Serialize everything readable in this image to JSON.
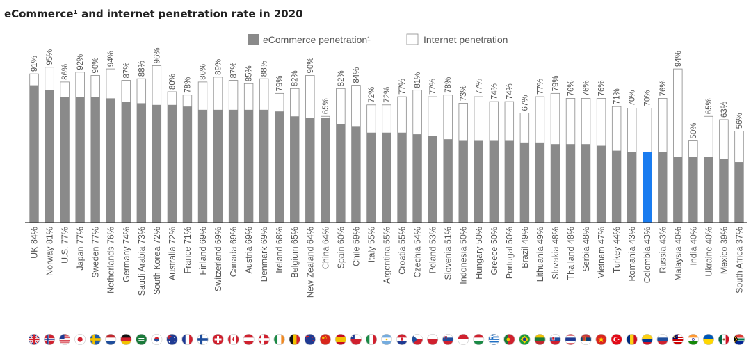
{
  "chart_data": {
    "type": "bar",
    "title": "eCommerce¹ and internet penetration rate in 2020",
    "legend": {
      "placement": "top-center",
      "entries": [
        "eCommerce penetration¹",
        "Internet penetration"
      ]
    },
    "ylim": [
      0,
      100
    ],
    "grid": false,
    "highlight": "Colombia",
    "colors": {
      "ecommerce": "#8a8a8a",
      "internet": "#ffffff",
      "highlight": "#1a7cf0",
      "outline": "#8a8a8a",
      "baseline": "#333333"
    },
    "categories": [
      "UK",
      "Norway",
      "U.S.",
      "Japan",
      "Sweden",
      "Netherlands",
      "Germany",
      "Saudi Arabia",
      "South Korea",
      "Australia",
      "France",
      "Finland",
      "Switzerland",
      "Canada",
      "Austria",
      "Denmark",
      "Ireland",
      "Belgium",
      "New Zealand",
      "China",
      "Spain",
      "Chile",
      "Italy",
      "Argentina",
      "Croatia",
      "Czechia",
      "Poland",
      "Slovenia",
      "Indonesia",
      "Hungary",
      "Greece",
      "Portugal",
      "Brazil",
      "Lithuania",
      "Slovakia",
      "Thailand",
      "Serbia",
      "Vietnam",
      "Turkey",
      "Romania",
      "Colombia",
      "Russia",
      "Malaysia",
      "India",
      "Ukraine",
      "Mexico",
      "South Africa"
    ],
    "series": [
      {
        "name": "eCommerce penetration¹",
        "values": [
          84,
          81,
          77,
          77,
          77,
          76,
          74,
          73,
          72,
          72,
          71,
          69,
          69,
          69,
          69,
          69,
          68,
          65,
          64,
          64,
          60,
          59,
          55,
          55,
          55,
          54,
          53,
          51,
          50,
          50,
          50,
          50,
          49,
          49,
          48,
          48,
          48,
          47,
          44,
          43,
          43,
          43,
          40,
          40,
          40,
          39,
          37
        ]
      },
      {
        "name": "Internet penetration",
        "values": [
          91,
          95,
          86,
          92,
          90,
          94,
          87,
          88,
          96,
          80,
          78,
          86,
          89,
          87,
          85,
          88,
          79,
          82,
          90,
          65,
          82,
          84,
          72,
          72,
          77,
          81,
          77,
          78,
          73,
          77,
          74,
          74,
          67,
          77,
          79,
          76,
          76,
          76,
          71,
          70,
          70,
          76,
          94,
          50,
          65,
          63,
          56
        ]
      }
    ],
    "ecommerce_labels": [
      "UK 84%",
      "Norway 81%",
      "U.S. 77%",
      "Japan 77%",
      "Sweden 77%",
      "Netherlands 76%",
      "Germany 74%",
      "Saudi Arabia 73%",
      "South Korea 72%",
      "Australia 72%",
      "France 71%",
      "Finland 69%",
      "Switzerland 69%",
      "Canada 69%",
      "Austria 69%",
      "Denmark 69%",
      "Ireland 68%",
      "Belgium 65%",
      "New Zealand 64%",
      "China 64%",
      "Spain 60%",
      "Chile 59%",
      "Italy 55%",
      "Argentina 55%",
      "Croatia 55%",
      "Czechia 54%",
      "Poland 53%",
      "Slovenia 51%",
      "Indonesia 50%",
      "Hungary 50%",
      "Greece 50%",
      "Portugal 50%",
      "Brazil 49%",
      "Lithuania 49%",
      "Slovakia 48%",
      "Thailand 48%",
      "Serbia 48%",
      "Vietnam 47%",
      "Turkey 44%",
      "Romania 43%",
      "Colombia 43%",
      "Russia 43%",
      "Malaysia 40%",
      "India 40%",
      "Ukraine 40%",
      "Mexico 39%",
      "South Africa 37%"
    ],
    "internet_labels": [
      "91%",
      "95%",
      "86%",
      "92%",
      "90%",
      "94%",
      "87%",
      "88%",
      "96%",
      "80%",
      "78%",
      "86%",
      "89%",
      "87%",
      "85%",
      "88%",
      "79%",
      "82%",
      "90%",
      "65%",
      "82%",
      "84%",
      "72%",
      "72%",
      "77%",
      "81%",
      "77%",
      "78%",
      "73%",
      "77%",
      "74%",
      "74%",
      "67%",
      "77%",
      "79%",
      "76%",
      "76%",
      "76%",
      "71%",
      "70%",
      "70%",
      "76%",
      "94%",
      "50%",
      "65%",
      "63%",
      "56%"
    ],
    "flags": [
      "uk",
      "norway",
      "usa",
      "japan",
      "sweden",
      "netherlands",
      "germany",
      "saudi-arabia",
      "south-korea",
      "australia",
      "france",
      "finland",
      "switzerland",
      "canada",
      "austria",
      "denmark",
      "ireland",
      "belgium",
      "new-zealand",
      "china",
      "spain",
      "chile",
      "italy",
      "argentina",
      "croatia",
      "czechia",
      "poland",
      "slovenia",
      "indonesia",
      "hungary",
      "greece",
      "portugal",
      "brazil",
      "lithuania",
      "slovakia",
      "thailand",
      "serbia",
      "vietnam",
      "turkey",
      "romania",
      "colombia",
      "russia",
      "malaysia",
      "india",
      "ukraine",
      "mexico",
      "south-africa"
    ]
  }
}
